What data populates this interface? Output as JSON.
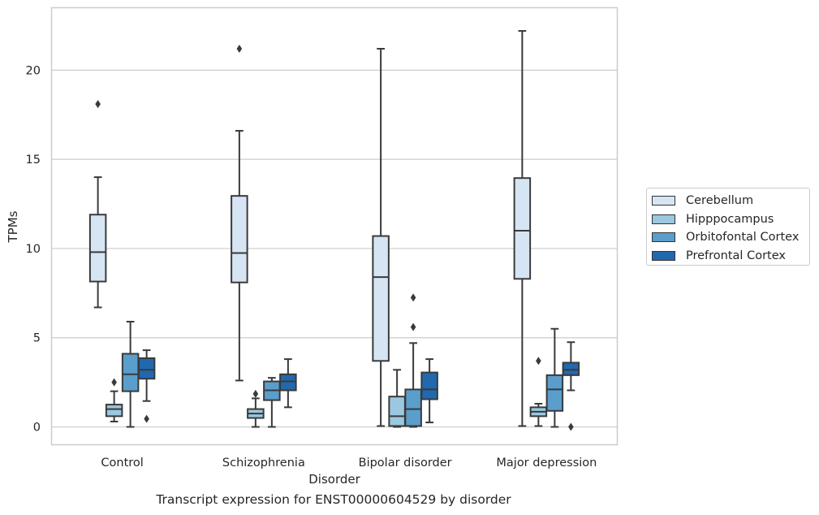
{
  "chart_data": {
    "type": "box",
    "xlabel": "Disorder",
    "ylabel": "TPMs",
    "caption": "Transcript expression for ENST00000604529 by disorder",
    "categories": [
      "Control",
      "Schizophrenia",
      "Bipolar disorder",
      "Major depression"
    ],
    "ylim": [
      -1.0,
      23.5
    ],
    "yticks": [
      0,
      5,
      10,
      15,
      20
    ],
    "grid": true,
    "legend_position": "right",
    "series": [
      {
        "name": "Cerebellum",
        "color": "#d6e5f3",
        "boxes": [
          {
            "min": 6.7,
            "q1": 8.15,
            "median": 9.8,
            "q3": 11.9,
            "max": 14.0,
            "outliers": [
              18.1
            ]
          },
          {
            "min": 2.6,
            "q1": 8.1,
            "median": 9.75,
            "q3": 12.95,
            "max": 16.6,
            "outliers": [
              21.2
            ]
          },
          {
            "min": 0.05,
            "q1": 3.7,
            "median": 8.4,
            "q3": 10.7,
            "max": 21.2,
            "outliers": []
          },
          {
            "min": 0.05,
            "q1": 8.3,
            "median": 11.0,
            "q3": 13.95,
            "max": 22.2,
            "outliers": []
          }
        ]
      },
      {
        "name": "Hipppocampus",
        "color": "#9ac8e0",
        "boxes": [
          {
            "min": 0.3,
            "q1": 0.6,
            "median": 1.0,
            "q3": 1.25,
            "max": 2.0,
            "outliers": [
              2.5
            ]
          },
          {
            "min": 0.0,
            "q1": 0.5,
            "median": 0.75,
            "q3": 1.0,
            "max": 1.6,
            "outliers": [
              1.85
            ]
          },
          {
            "min": 0.0,
            "q1": 0.05,
            "median": 0.6,
            "q3": 1.7,
            "max": 3.2,
            "outliers": []
          },
          {
            "min": 0.05,
            "q1": 0.6,
            "median": 0.85,
            "q3": 1.1,
            "max": 1.3,
            "outliers": [
              3.7
            ]
          }
        ]
      },
      {
        "name": "Orbitofontal Cortex",
        "color": "#5a9ecc",
        "boxes": [
          {
            "min": 0.0,
            "q1": 2.0,
            "median": 2.95,
            "q3": 4.1,
            "max": 5.9,
            "outliers": []
          },
          {
            "min": 0.0,
            "q1": 1.5,
            "median": 2.05,
            "q3": 2.55,
            "max": 2.75,
            "outliers": []
          },
          {
            "min": 0.0,
            "q1": 0.05,
            "median": 1.0,
            "q3": 2.1,
            "max": 4.7,
            "outliers": [
              5.6,
              7.25
            ]
          },
          {
            "min": 0.0,
            "q1": 0.9,
            "median": 2.1,
            "q3": 2.9,
            "max": 5.5,
            "outliers": []
          }
        ]
      },
      {
        "name": "Prefrontal Cortex",
        "color": "#2268ae",
        "boxes": [
          {
            "min": 1.45,
            "q1": 2.7,
            "median": 3.2,
            "q3": 3.85,
            "max": 4.3,
            "outliers": [
              0.45
            ]
          },
          {
            "min": 1.1,
            "q1": 2.05,
            "median": 2.55,
            "q3": 2.95,
            "max": 3.8,
            "outliers": []
          },
          {
            "min": 0.25,
            "q1": 1.55,
            "median": 2.1,
            "q3": 3.05,
            "max": 3.8,
            "outliers": []
          },
          {
            "min": 2.05,
            "q1": 2.9,
            "median": 3.2,
            "q3": 3.6,
            "max": 4.75,
            "outliers": [
              0.0
            ]
          }
        ]
      }
    ]
  }
}
